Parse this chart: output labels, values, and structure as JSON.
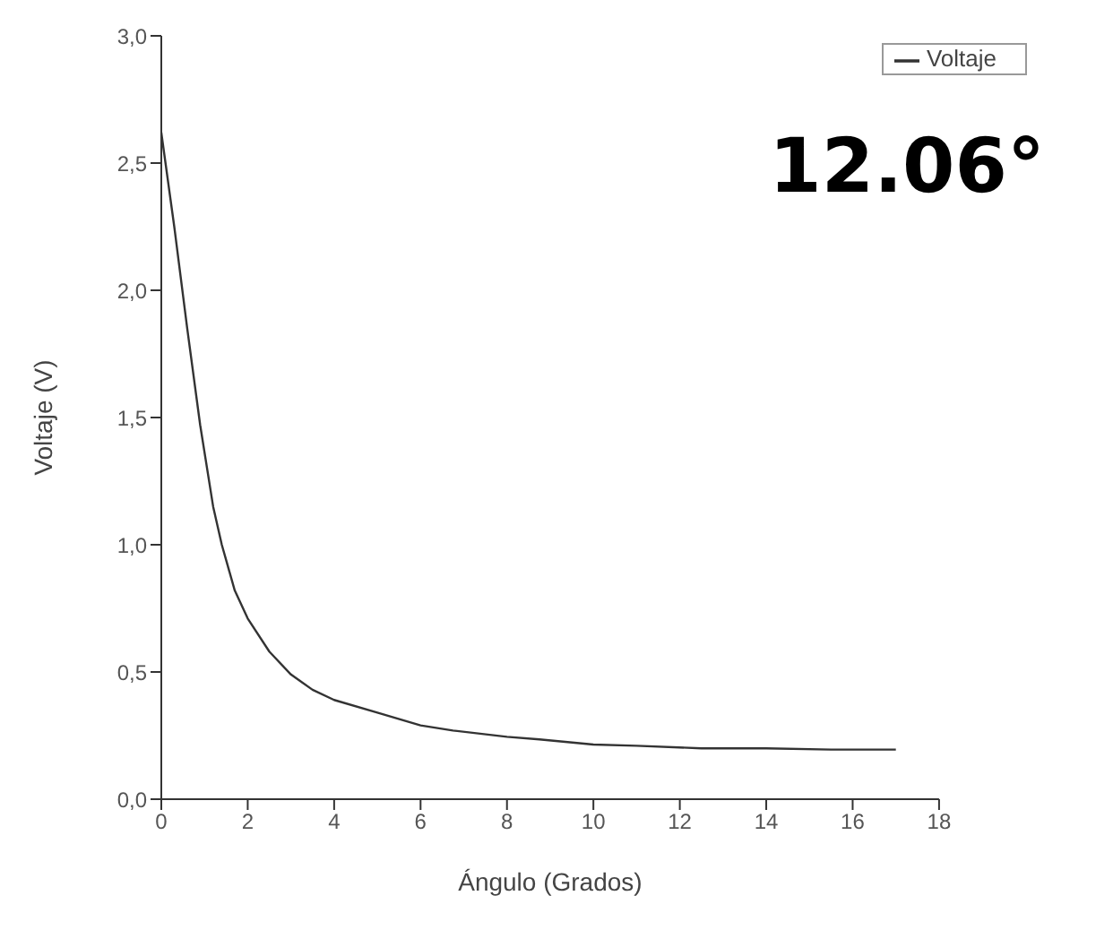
{
  "chart_data": {
    "type": "line",
    "xlabel": "Ángulo (Grados)",
    "ylabel": "Voltaje (V)",
    "annotations": [
      "12.06°"
    ],
    "x": [
      0,
      0.3,
      0.6,
      0.9,
      1.2,
      1.4,
      1.7,
      2.0,
      2.5,
      3.0,
      3.5,
      4.0,
      5.0,
      6.0,
      6.75,
      8.0,
      8.75,
      10.0,
      11.0,
      12.5,
      14.0,
      15.5,
      17.0
    ],
    "series": [
      {
        "name": "Voltaje",
        "color": "#333333",
        "values": [
          2.62,
          2.25,
          1.85,
          1.47,
          1.15,
          1.0,
          0.82,
          0.71,
          0.58,
          0.49,
          0.43,
          0.39,
          0.34,
          0.29,
          0.27,
          0.245,
          0.235,
          0.215,
          0.21,
          0.2,
          0.2,
          0.195,
          0.195
        ]
      }
    ],
    "xlim": [
      0,
      18
    ],
    "xticks": [
      0,
      2,
      4,
      6,
      8,
      10,
      12,
      14,
      16,
      18
    ],
    "ylim": [
      0,
      3
    ],
    "yticks": [
      {
        "value": 0,
        "label": "0,0"
      },
      {
        "value": 0.5,
        "label": "0,5"
      },
      {
        "value": 1,
        "label": "1,0"
      },
      {
        "value": 1.5,
        "label": "1,5"
      },
      {
        "value": 2,
        "label": "2,0"
      },
      {
        "value": 2.5,
        "label": "2,5"
      },
      {
        "value": 3,
        "label": "3,0"
      }
    ],
    "grid": false,
    "legend": "top right",
    "marker": "none",
    "line_style": "solid"
  }
}
